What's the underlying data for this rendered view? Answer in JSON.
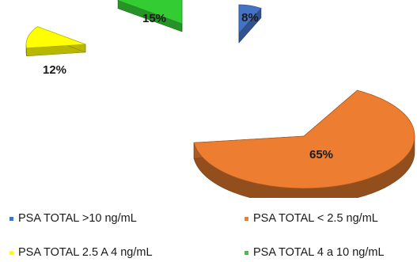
{
  "chart_data": {
    "type": "pie",
    "categories": [
      "PSA TOTAL >10 ng/mL",
      "PSA TOTAL < 2.5 ng/mL",
      "PSA TOTAL 2.5 A 4 ng/mL",
      "PSA TOTAL 4 a 10 ng/mL"
    ],
    "values": [
      8,
      65,
      12,
      15
    ],
    "labels": [
      "8%",
      "65%",
      "12%",
      "15%"
    ],
    "colors": {
      "PSA TOTAL >10 ng/mL": "#4472C4",
      "PSA TOTAL < 2.5 ng/mL": "#ED7D31",
      "PSA TOTAL 2.5 A 4 ng/mL": "#FFFF00",
      "PSA TOTAL 4 a 10 ng/mL": "#33CC33"
    },
    "style": "3d-exploded",
    "legend_position": "bottom"
  },
  "legend": [
    {
      "label": "PSA TOTAL >10 ng/mL",
      "color": "#4472C4"
    },
    {
      "label": "PSA TOTAL < 2.5 ng/mL",
      "color": "#ED7D31"
    },
    {
      "label": "PSA TOTAL 2.5 A 4 ng/mL",
      "color": "#FFFF00"
    },
    {
      "label": "PSA TOTAL 4 a 10 ng/mL",
      "color": "#33CC33"
    }
  ]
}
